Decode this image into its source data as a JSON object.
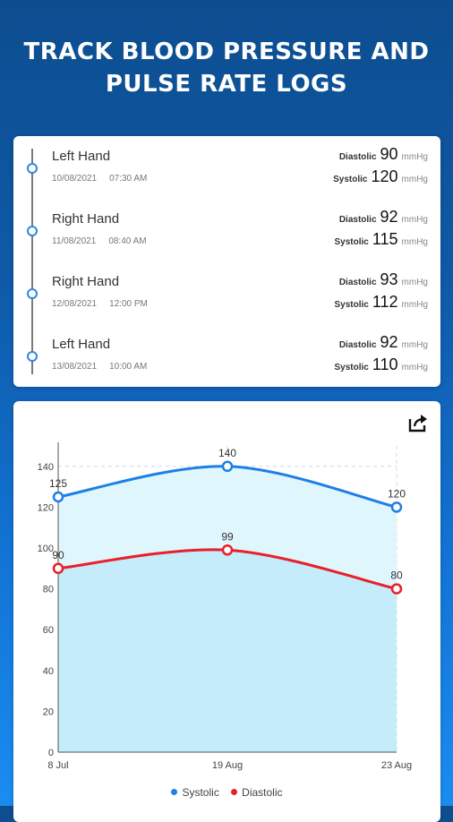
{
  "headline": {
    "line1": "TRACK BLOOD PRESSURE AND",
    "line2": "PULSE RATE LOGS"
  },
  "logs": [
    {
      "hand": "Left Hand",
      "date": "10/08/2021",
      "time": "07:30 AM",
      "diastolic_label": "Diastolic",
      "diastolic": "90",
      "systolic_label": "Systolic",
      "systolic": "120",
      "unit": "mmHg"
    },
    {
      "hand": "Right Hand",
      "date": "11/08/2021",
      "time": "08:40 AM",
      "diastolic_label": "Diastolic",
      "diastolic": "92",
      "systolic_label": "Systolic",
      "systolic": "115",
      "unit": "mmHg"
    },
    {
      "hand": "Right Hand",
      "date": "12/08/2021",
      "time": "12:00 PM",
      "diastolic_label": "Diastolic",
      "diastolic": "93",
      "systolic_label": "Systolic",
      "systolic": "112",
      "unit": "mmHg"
    },
    {
      "hand": "Left Hand",
      "date": "13/08/2021",
      "time": "10:00 AM",
      "diastolic_label": "Diastolic",
      "diastolic": "92",
      "systolic_label": "Systolic",
      "systolic": "110",
      "unit": "mmHg"
    }
  ],
  "colors": {
    "systolic": "#1e7fe6",
    "diastolic": "#e8202a",
    "accent": "#2f86e8"
  },
  "icons": {
    "share": "share-icon"
  },
  "chart_data": {
    "type": "area",
    "categories": [
      "8 Jul",
      "19 Aug",
      "23 Aug"
    ],
    "series": [
      {
        "name": "Systolic",
        "values": [
          125,
          140,
          120
        ]
      },
      {
        "name": "Diastolic",
        "values": [
          90,
          99,
          80
        ]
      }
    ],
    "ylim": [
      0,
      150
    ],
    "yticks": [
      0,
      20,
      40,
      60,
      80,
      100,
      120,
      140
    ],
    "grid": true,
    "legend": "bottom"
  }
}
